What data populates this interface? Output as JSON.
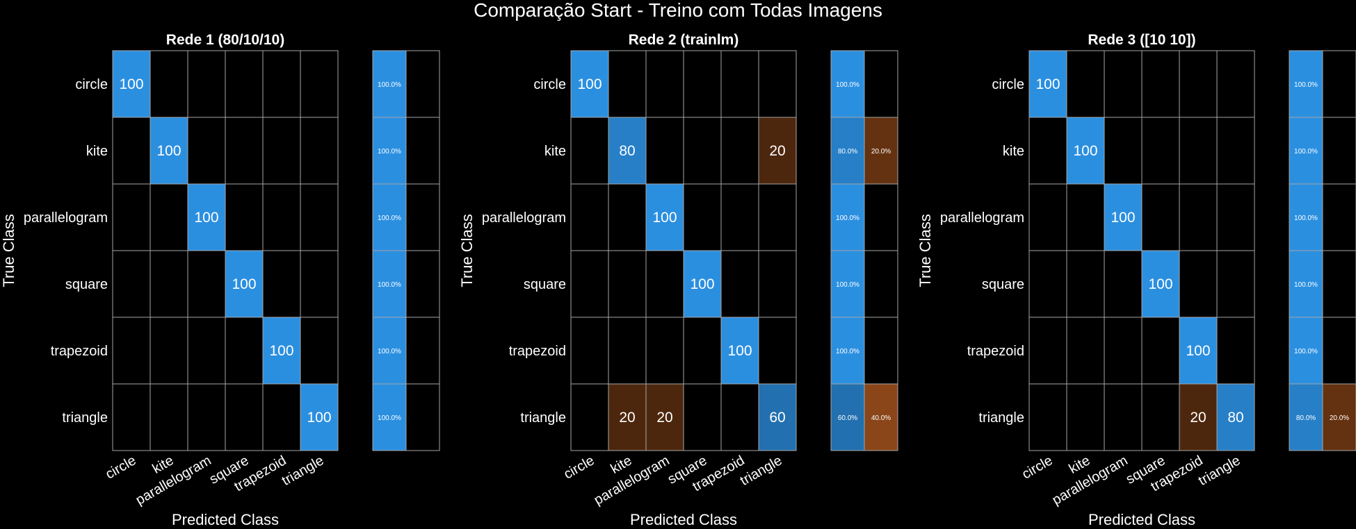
{
  "title": "Comparação Start - Treino com Todas Imagens",
  "colors": {
    "max_blue": "#2b8fe0",
    "max_orange": "#8a4518",
    "background": "#000000"
  },
  "chart_data": [
    {
      "type": "heatmap",
      "title": "Rede 1 (80/10/10)",
      "xlabel": "Predicted Class",
      "ylabel": "True Class",
      "classes": [
        "circle",
        "kite",
        "parallelogram",
        "square",
        "trapezoid",
        "triangle"
      ],
      "cells": [
        {
          "row": 0,
          "col": 0,
          "value": 100,
          "label": "100"
        },
        {
          "row": 1,
          "col": 1,
          "value": 100,
          "label": "100"
        },
        {
          "row": 2,
          "col": 2,
          "value": 100,
          "label": "100"
        },
        {
          "row": 3,
          "col": 3,
          "value": 100,
          "label": "100"
        },
        {
          "row": 4,
          "col": 4,
          "value": 100,
          "label": "100"
        },
        {
          "row": 5,
          "col": 5,
          "value": 100,
          "label": "100"
        }
      ],
      "row_summary": [
        {
          "correct": 100,
          "correct_label": "100.0%",
          "incorrect": 0,
          "incorrect_label": ""
        },
        {
          "correct": 100,
          "correct_label": "100.0%",
          "incorrect": 0,
          "incorrect_label": ""
        },
        {
          "correct": 100,
          "correct_label": "100.0%",
          "incorrect": 0,
          "incorrect_label": ""
        },
        {
          "correct": 100,
          "correct_label": "100.0%",
          "incorrect": 0,
          "incorrect_label": ""
        },
        {
          "correct": 100,
          "correct_label": "100.0%",
          "incorrect": 0,
          "incorrect_label": ""
        },
        {
          "correct": 100,
          "correct_label": "100.0%",
          "incorrect": 0,
          "incorrect_label": ""
        }
      ]
    },
    {
      "type": "heatmap",
      "title": "Rede 2 (trainlm)",
      "xlabel": "Predicted Class",
      "ylabel": "True Class",
      "classes": [
        "circle",
        "kite",
        "parallelogram",
        "square",
        "trapezoid",
        "triangle"
      ],
      "cells": [
        {
          "row": 0,
          "col": 0,
          "value": 100,
          "label": "100"
        },
        {
          "row": 1,
          "col": 1,
          "value": 80,
          "label": "80"
        },
        {
          "row": 1,
          "col": 5,
          "value": 20,
          "label": "20"
        },
        {
          "row": 2,
          "col": 2,
          "value": 100,
          "label": "100"
        },
        {
          "row": 3,
          "col": 3,
          "value": 100,
          "label": "100"
        },
        {
          "row": 4,
          "col": 4,
          "value": 100,
          "label": "100"
        },
        {
          "row": 5,
          "col": 1,
          "value": 20,
          "label": "20"
        },
        {
          "row": 5,
          "col": 2,
          "value": 20,
          "label": "20"
        },
        {
          "row": 5,
          "col": 5,
          "value": 60,
          "label": "60"
        }
      ],
      "row_summary": [
        {
          "correct": 100,
          "correct_label": "100.0%",
          "incorrect": 0,
          "incorrect_label": ""
        },
        {
          "correct": 80,
          "correct_label": "80.0%",
          "incorrect": 20,
          "incorrect_label": "20.0%"
        },
        {
          "correct": 100,
          "correct_label": "100.0%",
          "incorrect": 0,
          "incorrect_label": ""
        },
        {
          "correct": 100,
          "correct_label": "100.0%",
          "incorrect": 0,
          "incorrect_label": ""
        },
        {
          "correct": 100,
          "correct_label": "100.0%",
          "incorrect": 0,
          "incorrect_label": ""
        },
        {
          "correct": 60,
          "correct_label": "60.0%",
          "incorrect": 40,
          "incorrect_label": "40.0%"
        }
      ]
    },
    {
      "type": "heatmap",
      "title": "Rede 3 ([10 10])",
      "xlabel": "Predicted Class",
      "ylabel": "True Class",
      "classes": [
        "circle",
        "kite",
        "parallelogram",
        "square",
        "trapezoid",
        "triangle"
      ],
      "cells": [
        {
          "row": 0,
          "col": 0,
          "value": 100,
          "label": "100"
        },
        {
          "row": 1,
          "col": 1,
          "value": 100,
          "label": "100"
        },
        {
          "row": 2,
          "col": 2,
          "value": 100,
          "label": "100"
        },
        {
          "row": 3,
          "col": 3,
          "value": 100,
          "label": "100"
        },
        {
          "row": 4,
          "col": 4,
          "value": 100,
          "label": "100"
        },
        {
          "row": 5,
          "col": 4,
          "value": 20,
          "label": "20"
        },
        {
          "row": 5,
          "col": 5,
          "value": 80,
          "label": "80"
        }
      ],
      "row_summary": [
        {
          "correct": 100,
          "correct_label": "100.0%",
          "incorrect": 0,
          "incorrect_label": ""
        },
        {
          "correct": 100,
          "correct_label": "100.0%",
          "incorrect": 0,
          "incorrect_label": ""
        },
        {
          "correct": 100,
          "correct_label": "100.0%",
          "incorrect": 0,
          "incorrect_label": ""
        },
        {
          "correct": 100,
          "correct_label": "100.0%",
          "incorrect": 0,
          "incorrect_label": ""
        },
        {
          "correct": 100,
          "correct_label": "100.0%",
          "incorrect": 0,
          "incorrect_label": ""
        },
        {
          "correct": 80,
          "correct_label": "80.0%",
          "incorrect": 20,
          "incorrect_label": "20.0%"
        }
      ]
    }
  ]
}
